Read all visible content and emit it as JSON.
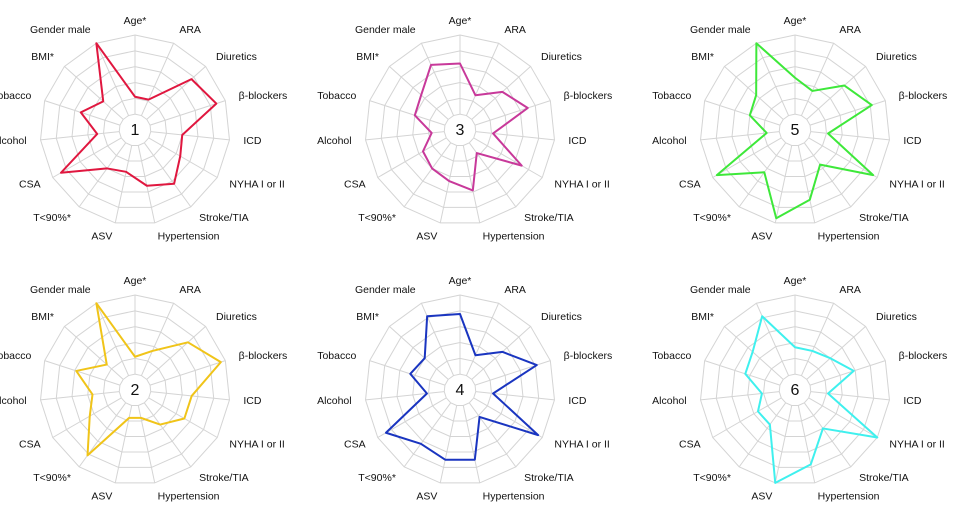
{
  "chart_data": [
    {
      "type": "radar",
      "title": "1",
      "color": "#e0173f",
      "rlim": [
        0,
        100
      ],
      "categories": [
        "Age*",
        "ARA",
        "Diuretics",
        "β-blockers",
        "ICD",
        "NYHA I or II",
        "Stroke/TIA",
        "Hypertension",
        "ASV",
        "T<90%*",
        "CSA",
        "Alcohol",
        "Tobacco",
        "BMI*",
        "Gender male"
      ],
      "values": [
        35,
        35,
        80,
        90,
        50,
        55,
        70,
        60,
        45,
        50,
        90,
        40,
        60,
        45,
        100
      ]
    },
    {
      "type": "radar",
      "title": "3",
      "color": "#c8399a",
      "rlim": [
        0,
        100
      ],
      "categories": [
        "Age*",
        "ARA",
        "Diuretics",
        "β-blockers",
        "ICD",
        "NYHA I or II",
        "Stroke/TIA",
        "Hypertension",
        "ASV",
        "T<90%*",
        "CSA",
        "Alcohol",
        "Tobacco",
        "BMI*",
        "Gender male"
      ],
      "values": [
        70,
        40,
        60,
        75,
        35,
        75,
        30,
        65,
        55,
        50,
        45,
        30,
        50,
        55,
        75
      ]
    },
    {
      "type": "radar",
      "title": "5",
      "color": "#3ee83a",
      "rlim": [
        0,
        100
      ],
      "categories": [
        "Age*",
        "ARA",
        "Diuretics",
        "β-blockers",
        "ICD",
        "NYHA I or II",
        "Stroke/TIA",
        "Hypertension",
        "ASV",
        "T<90%*",
        "CSA",
        "Alcohol",
        "Tobacco",
        "BMI*",
        "Gender male"
      ],
      "values": [
        55,
        45,
        70,
        85,
        35,
        95,
        45,
        75,
        95,
        55,
        95,
        30,
        50,
        55,
        100
      ]
    },
    {
      "type": "radar",
      "title": "2",
      "color": "#f0c419",
      "rlim": [
        0,
        100
      ],
      "categories": [
        "Age*",
        "ARA",
        "Diuretics",
        "β-blockers",
        "ICD",
        "NYHA I or II",
        "Stroke/TIA",
        "Hypertension",
        "ASV",
        "T<90%*",
        "CSA",
        "Alcohol",
        "Tobacco",
        "BMI*",
        "Gender male"
      ],
      "values": [
        35,
        45,
        75,
        95,
        60,
        60,
        45,
        30,
        30,
        85,
        55,
        45,
        65,
        40,
        100
      ]
    },
    {
      "type": "radar",
      "title": "4",
      "color": "#1a35c0",
      "rlim": [
        0,
        100
      ],
      "categories": [
        "Age*",
        "ARA",
        "Diuretics",
        "β-blockers",
        "ICD",
        "NYHA I or II",
        "Stroke/TIA",
        "Hypertension",
        "ASV",
        "T<90%*",
        "CSA",
        "Alcohol",
        "Tobacco",
        "BMI*",
        "Gender male"
      ],
      "values": [
        80,
        40,
        60,
        85,
        35,
        95,
        35,
        75,
        75,
        70,
        90,
        35,
        55,
        50,
        85
      ]
    },
    {
      "type": "radar",
      "title": "6",
      "color": "#3ff0ee",
      "rlim": [
        0,
        100
      ],
      "categories": [
        "Age*",
        "ARA",
        "Diuretics",
        "β-blockers",
        "ICD",
        "NYHA I or II",
        "Stroke/TIA",
        "Hypertension",
        "ASV",
        "T<90%*",
        "CSA",
        "Alcohol",
        "Tobacco",
        "BMI*",
        "Gender male"
      ],
      "values": [
        45,
        45,
        50,
        65,
        35,
        100,
        50,
        80,
        100,
        45,
        45,
        35,
        55,
        60,
        85
      ]
    }
  ]
}
